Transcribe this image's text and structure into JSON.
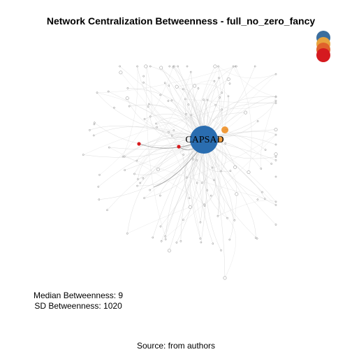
{
  "title": "Network Centralization Betweenness - full_no_zero_fancy",
  "hub_label": "CAPSAD",
  "stats": {
    "median": "Median Betweenness: 9",
    "sd": "SD Betweenness: 1020"
  },
  "source": "Source: from authors",
  "colors": {
    "hub": "#2a6db0",
    "orange": "#f09a3a",
    "red": "#d7191c",
    "edge": "#cfcfcf",
    "node": "#888888"
  },
  "legend": [
    {
      "name": "legend-blue",
      "color": "#3b6e9e"
    },
    {
      "name": "legend-gold",
      "color": "#e8a33d"
    },
    {
      "name": "legend-orange",
      "color": "#e0622b"
    },
    {
      "name": "legend-red",
      "color": "#d51a1f"
    }
  ]
}
